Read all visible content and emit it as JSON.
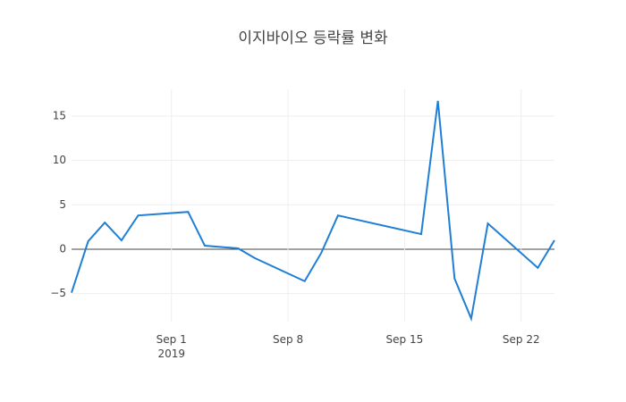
{
  "chart_data": {
    "type": "line",
    "title": "이지바이오 등락률 변화",
    "x": [
      "2019-08-26",
      "2019-08-27",
      "2019-08-28",
      "2019-08-29",
      "2019-08-30",
      "2019-09-02",
      "2019-09-03",
      "2019-09-05",
      "2019-09-06",
      "2019-09-09",
      "2019-09-10",
      "2019-09-11",
      "2019-09-16",
      "2019-09-17",
      "2019-09-18",
      "2019-09-19",
      "2019-09-20",
      "2019-09-23",
      "2019-09-24"
    ],
    "values": [
      -4.9,
      0.9,
      3.0,
      1.0,
      3.8,
      4.2,
      0.4,
      0.1,
      -1.0,
      -3.6,
      -0.4,
      3.8,
      1.7,
      16.7,
      -3.3,
      -7.8,
      2.9,
      -2.1,
      1.0
    ],
    "color": "#1f7fd6",
    "xlim": [
      "2019-08-26",
      "2019-09-24"
    ],
    "xticks": [
      {
        "value": "2019-09-01",
        "label": "Sep 1\n2019"
      },
      {
        "value": "2019-09-08",
        "label": "Sep 8"
      },
      {
        "value": "2019-09-15",
        "label": "Sep 15"
      },
      {
        "value": "2019-09-22",
        "label": "Sep 22"
      }
    ],
    "ylim": [
      -8.15,
      18.0
    ],
    "yticks": [
      {
        "value": -5,
        "label": "−5"
      },
      0,
      5,
      10,
      15
    ],
    "grid": true
  }
}
